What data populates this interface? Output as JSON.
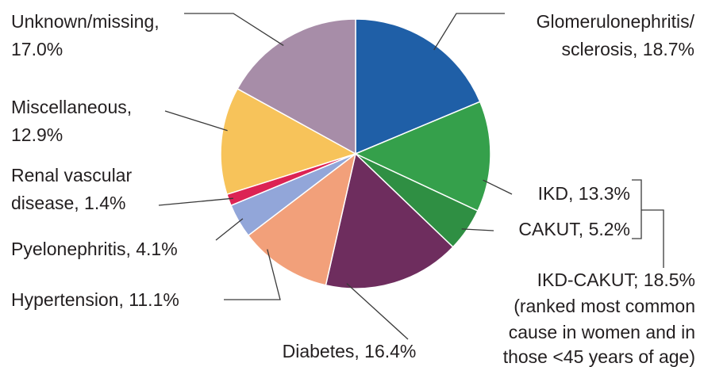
{
  "chart_data": {
    "type": "pie",
    "slices": [
      {
        "label_lines": [
          "Glomerulonephritis/",
          "sclerosis, 18.7%"
        ],
        "value": 18.7,
        "color": "#1f5fa7"
      },
      {
        "label_lines": [
          "IKD, 13.3%"
        ],
        "value": 13.3,
        "color": "#35a04b"
      },
      {
        "label_lines": [
          "CAKUT, 5.2%"
        ],
        "value": 5.2,
        "color": "#2f8f43"
      },
      {
        "label_lines": [
          "Diabetes, 16.4%"
        ],
        "value": 16.4,
        "color": "#6e2d5e"
      },
      {
        "label_lines": [
          "Hypertension, 11.1%"
        ],
        "value": 11.1,
        "color": "#f2a07a"
      },
      {
        "label_lines": [
          "Pyelonephritis, 4.1%"
        ],
        "value": 4.1,
        "color": "#92a6d9"
      },
      {
        "label_lines": [
          "Renal vascular",
          "disease, 1.4%"
        ],
        "value": 1.4,
        "color": "#dc2354"
      },
      {
        "label_lines": [
          "Miscellaneous,",
          "12.9%"
        ],
        "value": 12.9,
        "color": "#f7c35a"
      },
      {
        "label_lines": [
          "Unknown/missing,",
          "17.0%"
        ],
        "value": 17.0,
        "color": "#a78da8"
      }
    ],
    "group_annotation": {
      "members": [
        "IKD, 13.3%",
        "CAKUT, 5.2%"
      ],
      "lines": [
        "IKD-CAKUT; 18.5%",
        "(ranked most common",
        "cause in women and in",
        "those <45 years of age)"
      ]
    }
  }
}
